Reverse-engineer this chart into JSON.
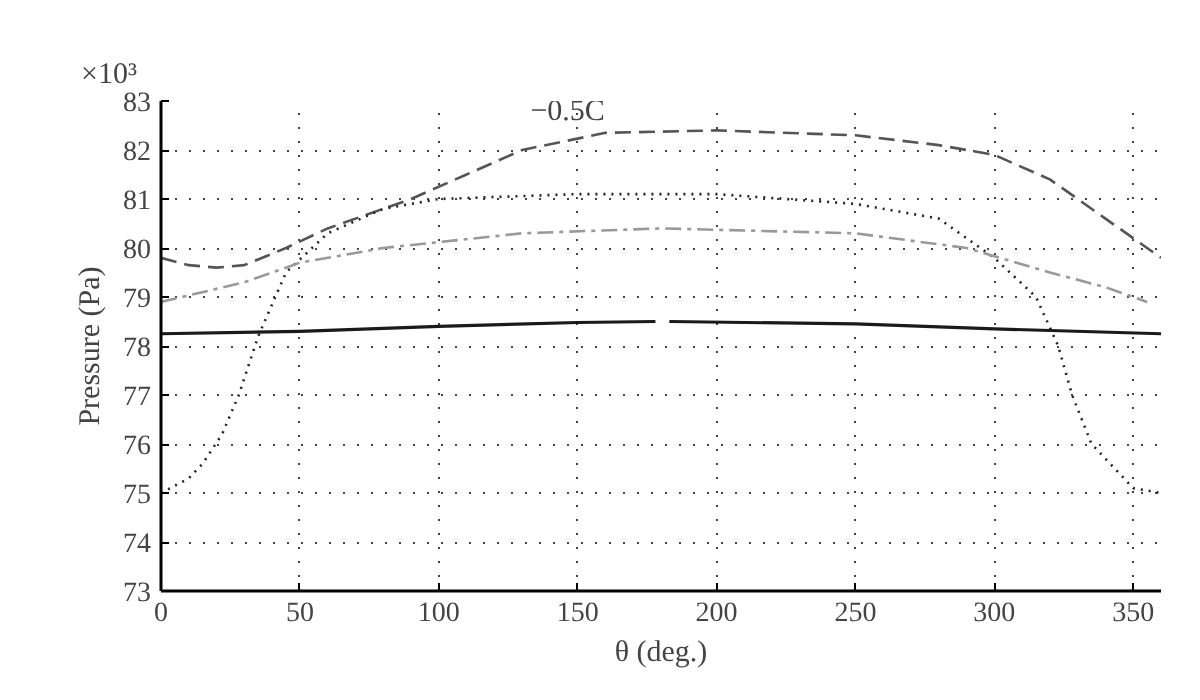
{
  "chart_data": {
    "type": "line",
    "xlabel": "θ (deg.)",
    "ylabel": "Pressure (Pa)",
    "xlim": [
      0,
      360
    ],
    "xticks": [
      0,
      50,
      100,
      150,
      200,
      250,
      300,
      350
    ],
    "ylim": [
      73,
      83
    ],
    "yticks": [
      73,
      74,
      75,
      76,
      77,
      78,
      79,
      80,
      81,
      82,
      83
    ],
    "grid": true,
    "marker": "none",
    "annotations": [
      "×10³",
      {
        "text": "−0.5C",
        "x": 150,
        "y": 82.4
      }
    ],
    "series": [
      {
        "color": "#1a1a1a",
        "line_style": "solid",
        "x": [
          0,
          50,
          100,
          150,
          178,
          180,
          183,
          250,
          300,
          360
        ],
        "values": [
          78.25,
          78.3,
          78.4,
          78.48,
          78.5,
          null,
          78.5,
          78.45,
          78.35,
          78.25
        ]
      },
      {
        "color": "#555555",
        "line_style": "dashed",
        "x": [
          0,
          10,
          20,
          30,
          45,
          60,
          90,
          110,
          130,
          160,
          200,
          250,
          280,
          300,
          320,
          330,
          345,
          360
        ],
        "values": [
          79.8,
          79.65,
          79.6,
          79.65,
          80.0,
          80.4,
          81.0,
          81.5,
          82.0,
          82.35,
          82.4,
          82.3,
          82.1,
          81.9,
          81.4,
          81.0,
          80.4,
          79.8
        ]
      },
      {
        "color": "#222222",
        "line_style": "dotted",
        "x": [
          0,
          10,
          15,
          22,
          28,
          35,
          45,
          60,
          80,
          100,
          150,
          200,
          250,
          280,
          300,
          315,
          323,
          328,
          335,
          350,
          360
        ],
        "values": [
          75.0,
          75.3,
          75.6,
          76.2,
          77.0,
          78.2,
          79.5,
          80.3,
          80.8,
          81.0,
          81.1,
          81.1,
          80.9,
          80.6,
          79.8,
          79.0,
          78.0,
          77.0,
          76.0,
          75.1,
          75.0
        ]
      },
      {
        "color": "#999999",
        "line_style": "dashdot",
        "x": [
          0,
          30,
          50,
          80,
          130,
          180,
          250,
          290,
          320,
          340,
          355
        ],
        "values": [
          78.9,
          79.3,
          79.7,
          80.0,
          80.3,
          80.4,
          80.3,
          80.0,
          79.5,
          79.2,
          78.9
        ]
      }
    ]
  }
}
